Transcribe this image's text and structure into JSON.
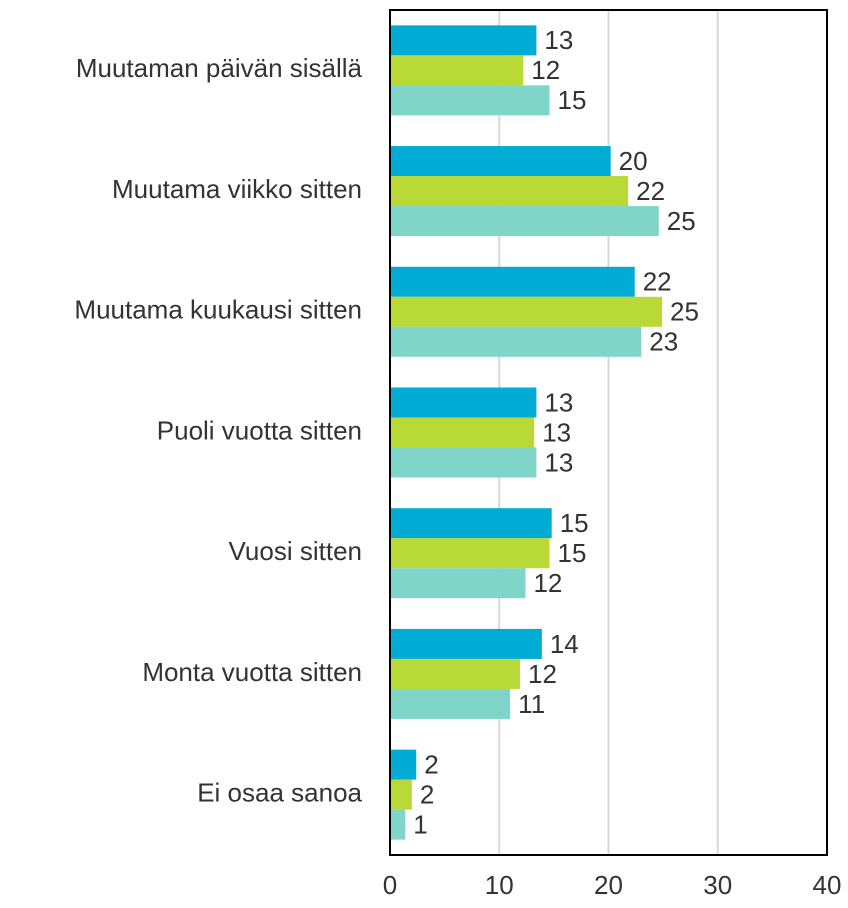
{
  "chart_data": {
    "type": "bar",
    "orientation": "horizontal",
    "categories": [
      "Muutaman päivän sisällä",
      "Muutama viikko sitten",
      "Muutama kuukausi sitten",
      "Puoli vuotta sitten",
      "Vuosi sitten",
      "Monta vuotta sitten",
      "Ei osaa sanoa"
    ],
    "series": [
      {
        "color": "#00acd4",
        "values": [
          13.4,
          20.2,
          22.4,
          13.4,
          14.8,
          13.9,
          2.4
        ],
        "value_labels": [
          "13",
          "20",
          "22",
          "13",
          "15",
          "14",
          "2"
        ]
      },
      {
        "color": "#b8d936",
        "values": [
          12.2,
          21.8,
          24.9,
          13.2,
          14.6,
          11.9,
          2.0
        ],
        "value_labels": [
          "12",
          "22",
          "25",
          "13",
          "15",
          "12",
          "2"
        ]
      },
      {
        "color": "#7fd6c8",
        "values": [
          14.6,
          24.6,
          23.0,
          13.4,
          12.4,
          11.0,
          1.4
        ],
        "value_labels": [
          "15",
          "25",
          "23",
          "13",
          "12",
          "11",
          "1"
        ]
      }
    ],
    "xlim": [
      0,
      40
    ],
    "xticks": [
      0,
      10,
      20,
      30,
      40
    ],
    "grid": true
  }
}
